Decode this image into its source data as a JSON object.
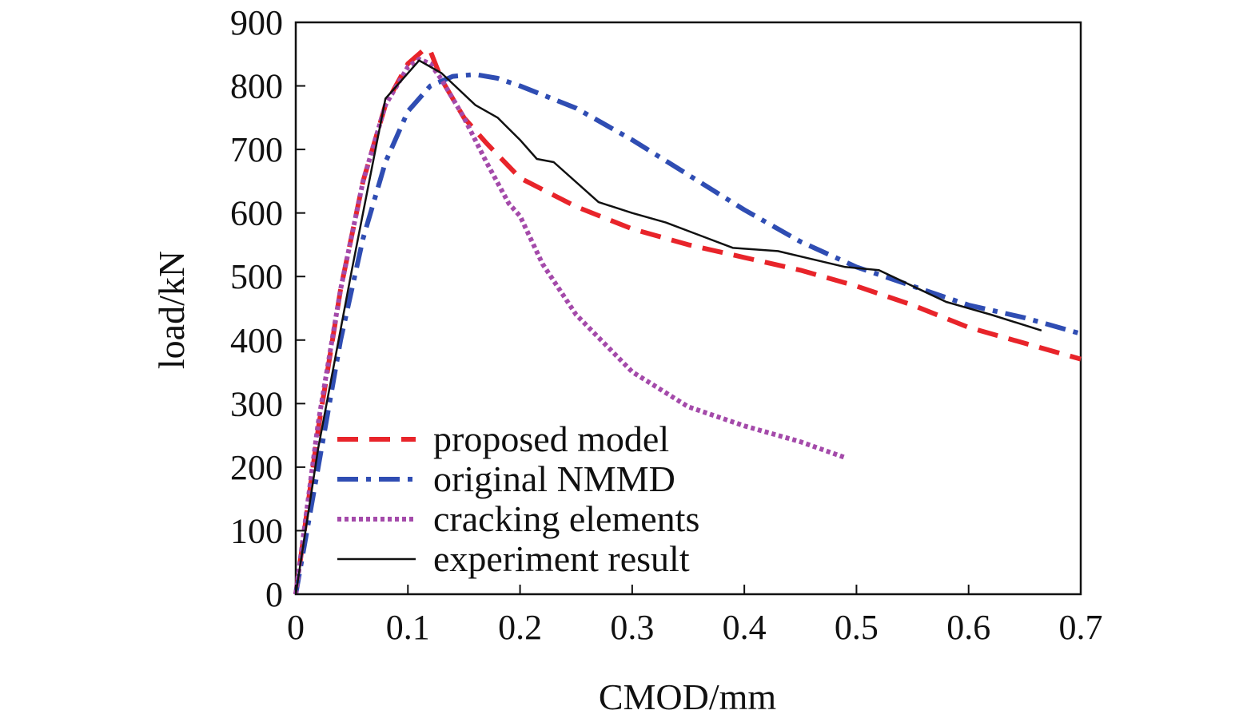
{
  "chart_data": {
    "type": "line",
    "xlabel": "CMOD/mm",
    "ylabel": "load/kN",
    "xlim": [
      0,
      0.7
    ],
    "ylim": [
      0,
      900
    ],
    "xticks": [
      "0",
      "0.1",
      "0.2",
      "0.3",
      "0.4",
      "0.5",
      "0.6",
      "0.7"
    ],
    "yticks": [
      "0",
      "100",
      "200",
      "300",
      "400",
      "500",
      "600",
      "700",
      "800",
      "900"
    ],
    "grid": false,
    "legend_position": "bottom-left",
    "series": [
      {
        "name": "proposed model",
        "color": "#e8242a",
        "style": "dashed",
        "x": [
          0,
          0.02,
          0.04,
          0.06,
          0.08,
          0.1,
          0.115,
          0.12,
          0.13,
          0.15,
          0.17,
          0.2,
          0.25,
          0.3,
          0.35,
          0.4,
          0.45,
          0.5,
          0.55,
          0.6,
          0.65,
          0.7
        ],
        "y": [
          0,
          260,
          480,
          650,
          770,
          835,
          858,
          855,
          810,
          750,
          710,
          655,
          610,
          575,
          550,
          530,
          510,
          485,
          455,
          420,
          395,
          370
        ]
      },
      {
        "name": "original NMMD",
        "color": "#2f4db3",
        "style": "dashdot",
        "x": [
          0,
          0.02,
          0.04,
          0.06,
          0.08,
          0.1,
          0.12,
          0.14,
          0.16,
          0.18,
          0.2,
          0.25,
          0.3,
          0.35,
          0.4,
          0.45,
          0.5,
          0.55,
          0.6,
          0.65,
          0.7
        ],
        "y": [
          0,
          200,
          400,
          560,
          680,
          760,
          800,
          815,
          818,
          812,
          800,
          765,
          715,
          660,
          605,
          555,
          515,
          485,
          455,
          435,
          410
        ]
      },
      {
        "name": "cracking elements",
        "color": "#a44aaa",
        "style": "dotted",
        "x": [
          0,
          0.02,
          0.04,
          0.06,
          0.08,
          0.1,
          0.11,
          0.12,
          0.13,
          0.15,
          0.17,
          0.19,
          0.2,
          0.22,
          0.25,
          0.3,
          0.35,
          0.4,
          0.45,
          0.49
        ],
        "y": [
          0,
          270,
          480,
          650,
          770,
          830,
          842,
          835,
          810,
          750,
          680,
          615,
          595,
          520,
          440,
          350,
          295,
          265,
          240,
          215
        ]
      },
      {
        "name": "experiment result",
        "color": "#111111",
        "style": "solid",
        "x": [
          0,
          0.02,
          0.05,
          0.08,
          0.095,
          0.11,
          0.13,
          0.16,
          0.18,
          0.2,
          0.215,
          0.23,
          0.27,
          0.3,
          0.33,
          0.36,
          0.39,
          0.43,
          0.49,
          0.52,
          0.58,
          0.62,
          0.665
        ],
        "y": [
          0,
          230,
          510,
          780,
          810,
          840,
          820,
          770,
          750,
          715,
          685,
          680,
          617,
          600,
          585,
          565,
          545,
          540,
          515,
          510,
          460,
          440,
          415
        ]
      }
    ]
  }
}
